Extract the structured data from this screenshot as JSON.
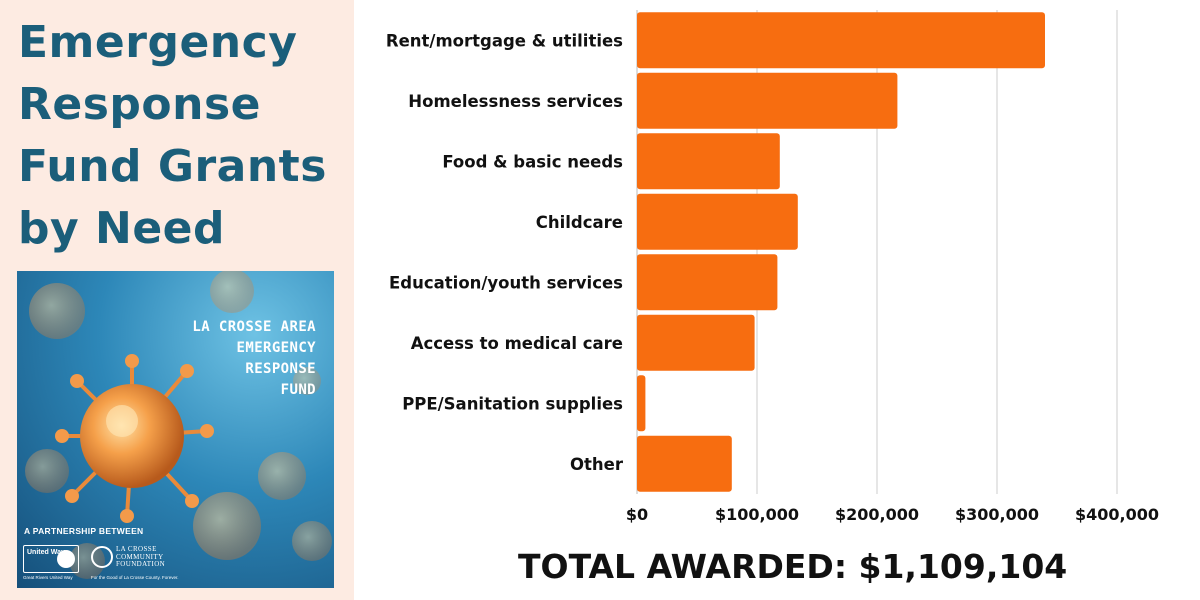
{
  "title_lines": [
    "Emergency",
    "Response",
    "Fund Grants",
    "by Need"
  ],
  "poster": {
    "heading_lines": [
      "LA CROSSE AREA",
      "EMERGENCY",
      "RESPONSE",
      "FUND"
    ],
    "partnership_text": "A PARTNERSHIP BETWEEN",
    "united_way": {
      "logo_text": "United Way",
      "tagline": "Great Rivers United Way"
    },
    "foundation": {
      "name_lines": [
        "LA CROSSE",
        "COMMUNITY",
        "FOUNDATION"
      ],
      "tagline": "For the Good of La Crosse County. Forever."
    }
  },
  "chart_data": {
    "type": "bar",
    "orientation": "horizontal",
    "categories": [
      "Rent/mortgage & utilities",
      "Homelessness services",
      "Food & basic needs",
      "Childcare",
      "Education/youth services",
      "Access to medical care",
      "PPE/Sanitation supplies",
      "Other"
    ],
    "values": [
      340000,
      217000,
      119000,
      134000,
      117000,
      98000,
      7000,
      79000
    ],
    "xlim": [
      0,
      400000
    ],
    "x_ticks": [
      0,
      100000,
      200000,
      300000,
      400000
    ],
    "x_tick_labels": [
      "$0",
      "$100,000",
      "$200,000",
      "$300,000",
      "$400,000"
    ],
    "grid": "vertical",
    "bar_color": "#f76d10",
    "grid_color": "#cccccc"
  },
  "total_text": "TOTAL AWARDED: $1,109,104",
  "colors": {
    "title": "#1b5e7a",
    "left_background": "#fdebe2",
    "bar": "#f76d10"
  }
}
